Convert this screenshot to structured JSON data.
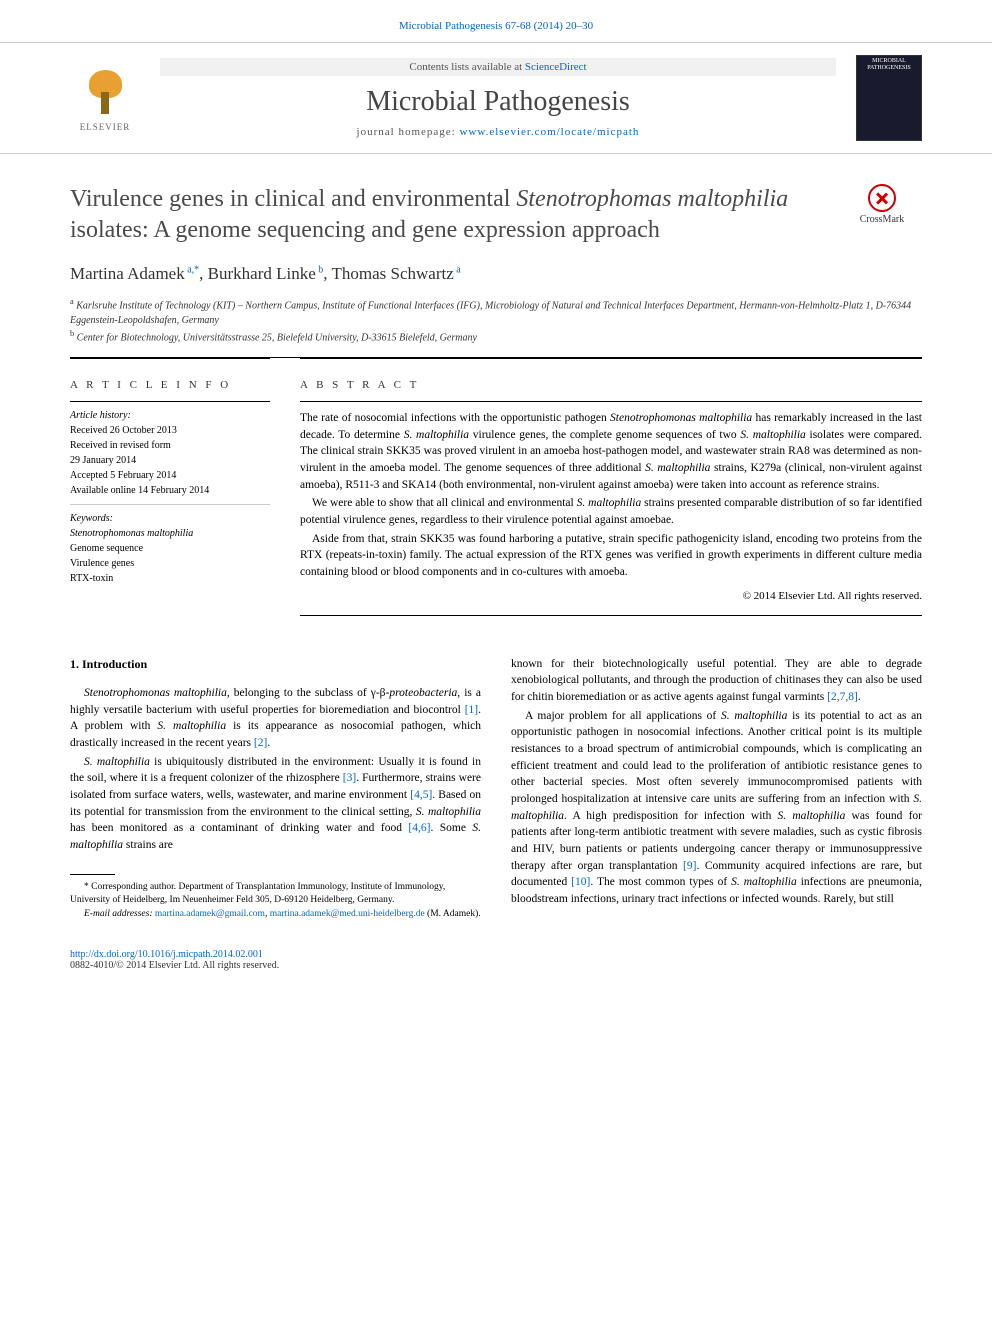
{
  "header": {
    "citation": "Microbial Pathogenesis 67-68 (2014) 20–30",
    "sciencedirect_prefix": "Contents lists available at ",
    "sciencedirect": "ScienceDirect",
    "journal_name": "Microbial Pathogenesis",
    "homepage_prefix": "journal homepage: ",
    "homepage_url": "www.elsevier.com/locate/micpath",
    "elsevier": "ELSEVIER",
    "cover_title": "MICROBIAL PATHOGENESIS"
  },
  "title": "Virulence genes in clinical and environmental Stenotrophomas maltophilia isolates: A genome sequencing and gene expression approach",
  "crossmark": "CrossMark",
  "authors_html": "Martina Adamek<sup>a,*</sup>, Burkhard Linke<sup>b</sup>, Thomas Schwartz<sup>a</sup>",
  "affiliations": {
    "a": "Karlsruhe Institute of Technology (KIT) – Northern Campus, Institute of Functional Interfaces (IFG), Microbiology of Natural and Technical Interfaces Department, Hermann-von-Helmholtz-Platz 1, D-76344 Eggenstein-Leopoldshafen, Germany",
    "b": "Center for Biotechnology, Universitätsstrasse 25, Bielefeld University, D-33615 Bielefeld, Germany"
  },
  "article_info": {
    "heading": "A R T I C L E   I N F O",
    "history_label": "Article history:",
    "history": [
      "Received 26 October 2013",
      "Received in revised form",
      "29 January 2014",
      "Accepted 5 February 2014",
      "Available online 14 February 2014"
    ],
    "keywords_label": "Keywords:",
    "keywords": [
      "Stenotrophomonas maltophilia",
      "Genome sequence",
      "Virulence genes",
      "RTX-toxin"
    ]
  },
  "abstract": {
    "heading": "A B S T R A C T",
    "paragraphs": [
      "The rate of nosocomial infections with the opportunistic pathogen Stenotrophomonas maltophilia has remarkably increased in the last decade. To determine S. maltophilia virulence genes, the complete genome sequences of two S. maltophilia isolates were compared. The clinical strain SKK35 was proved virulent in an amoeba host-pathogen model, and wastewater strain RA8 was determined as non-virulent in the amoeba model. The genome sequences of three additional S. maltophilia strains, K279a (clinical, non-virulent against amoeba), R511-3 and SKA14 (both environmental, non-virulent against amoeba) were taken into account as reference strains.",
      "We were able to show that all clinical and environmental S. maltophilia strains presented comparable distribution of so far identified potential virulence genes, regardless to their virulence potential against amoebae.",
      "Aside from that, strain SKK35 was found harboring a putative, strain specific pathogenicity island, encoding two proteins from the RTX (repeats-in-toxin) family. The actual expression of the RTX genes was verified in growth experiments in different culture media containing blood or blood components and in co-cultures with amoeba."
    ],
    "copyright": "© 2014 Elsevier Ltd. All rights reserved."
  },
  "body": {
    "section_number": "1.",
    "section_title": "Introduction",
    "col1": [
      "Stenotrophomonas maltophilia, belonging to the subclass of γ-β-proteobacteria, is a highly versatile bacterium with useful properties for bioremediation and biocontrol [1]. A problem with S. maltophilia is its appearance as nosocomial pathogen, which drastically increased in the recent years [2].",
      "S. maltophilia is ubiquitously distributed in the environment: Usually it is found in the soil, where it is a frequent colonizer of the rhizosphere [3]. Furthermore, strains were isolated from surface waters, wells, wastewater, and marine environment [4,5]. Based on its potential for transmission from the environment to the clinical setting, S. maltophilia has been monitored as a contaminant of drinking water and food [4,6]. Some S. maltophilia strains are"
    ],
    "col2": [
      "known for their biotechnologically useful potential. They are able to degrade xenobiological pollutants, and through the production of chitinases they can also be used for chitin bioremediation or as active agents against fungal varmints [2,7,8].",
      "A major problem for all applications of S. maltophilia is its potential to act as an opportunistic pathogen in nosocomial infections. Another critical point is its multiple resistances to a broad spectrum of antimicrobial compounds, which is complicating an efficient treatment and could lead to the proliferation of antibiotic resistance genes to other bacterial species. Most often severely immunocompromised patients with prolonged hospitalization at intensive care units are suffering from an infection with S. maltophilia. A high predisposition for infection with S. maltophilia was found for patients after long-term antibiotic treatment with severe maladies, such as cystic fibrosis and HIV, burn patients or patients undergoing cancer therapy or immunosuppressive therapy after organ transplantation [9]. Community acquired infections are rare, but documented [10]. The most common types of S. maltophilia infections are pneumonia, bloodstream infections, urinary tract infections or infected wounds. Rarely, but still"
    ]
  },
  "footnote": {
    "corresponding": "* Corresponding author. Department of Transplantation Immunology, Institute of Immunology, University of Heidelberg, Im Neuenheimer Feld 305, D-69120 Heidelberg, Germany.",
    "email_label": "E-mail addresses:",
    "email1": "martina.adamek@gmail.com",
    "email2": "martina.adamek@med.uni-heidelberg.de",
    "email_suffix": "(M. Adamek)."
  },
  "footer": {
    "doi": "http://dx.doi.org/10.1016/j.micpath.2014.02.001",
    "issn": "0882-4010/© 2014 Elsevier Ltd. All rights reserved."
  },
  "colors": {
    "link": "#0066cc",
    "text": "#000000",
    "heading_gray": "#4a4a4a",
    "elsevier_orange": "#e8a030",
    "crossmark_red": "#c00"
  },
  "typography": {
    "body_fontsize": 11.5,
    "title_fontsize": 24,
    "journal_fontsize": 28,
    "authors_fontsize": 17,
    "affiliation_fontsize": 10,
    "footnote_fontsize": 9.5
  }
}
